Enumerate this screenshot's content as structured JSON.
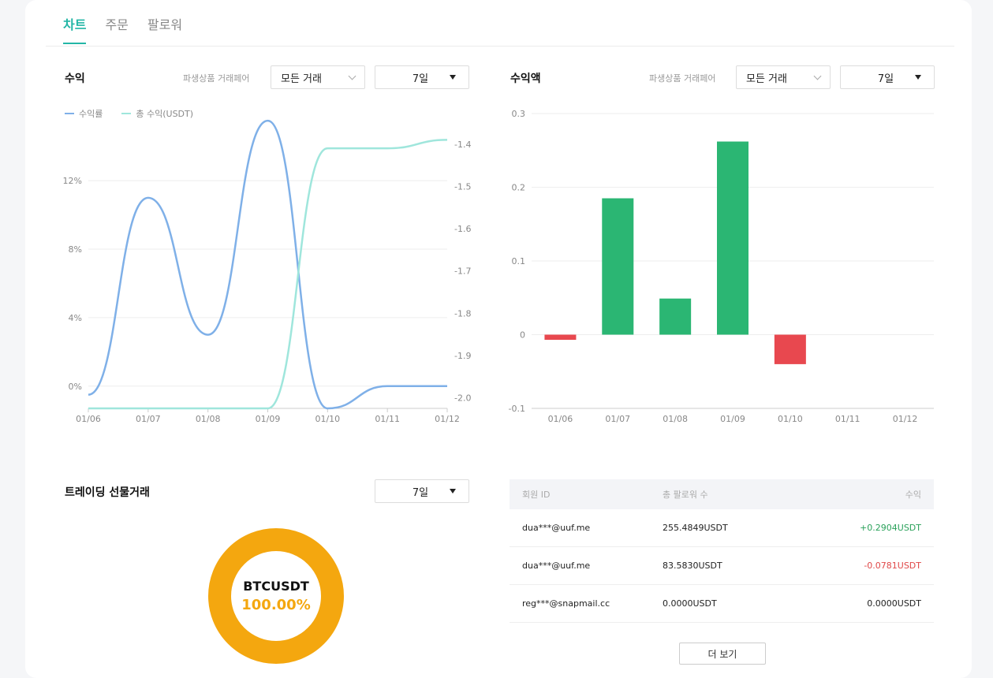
{
  "tabs": [
    {
      "label": "차트"
    },
    {
      "label": "주문"
    },
    {
      "label": "팔로워"
    }
  ],
  "profit_panel": {
    "title": "수익",
    "pair_label": "파생상품 거래페어",
    "pair_select": "모든 거래",
    "period_select": "7일",
    "legend": [
      {
        "label": "수익률",
        "color": "#7fb0e8"
      },
      {
        "label": "총 수익(USDT)",
        "color": "#9fe6dc"
      }
    ]
  },
  "amount_panel": {
    "title": "수익액",
    "pair_label": "파생상품 거래페어",
    "pair_select": "모든 거래",
    "period_select": "7일"
  },
  "trading_panel": {
    "title": "트레이딩 선물거래",
    "period_select": "7일",
    "symbol": "BTCUSDT",
    "share": "100.00%",
    "share_value": 100,
    "color": "#f4a70f"
  },
  "followers_table": {
    "headers": [
      "회원 ID",
      "총 팔로워 수",
      "수익"
    ],
    "rows": [
      {
        "id": "dua***@uuf.me",
        "total": "255.4849USDT",
        "profit": "+0.2904USDT",
        "profit_color": "#2aa15a"
      },
      {
        "id": "dua***@uuf.me",
        "total": "83.5830USDT",
        "profit": "-0.0781USDT",
        "profit_color": "#e04848"
      },
      {
        "id": "reg***@snapmail.cc",
        "total": "0.0000USDT",
        "profit": "0.0000USDT",
        "profit_color": "#222222"
      }
    ],
    "more_button": "더 보기"
  },
  "chart_data": [
    {
      "type": "line",
      "x": [
        "01/06",
        "01/07",
        "01/08",
        "01/09",
        "01/10",
        "01/11",
        "01/12"
      ],
      "y_left_ticks": [
        "0%",
        "4%",
        "8%",
        "12%"
      ],
      "y_left_range": [
        -1.3,
        15
      ],
      "y_right_ticks": [
        "-1.4",
        "-1.5",
        "-1.6",
        "-1.7",
        "-1.8",
        "-1.9",
        "-2.0"
      ],
      "y_right_range": [
        -2.025,
        -1.365
      ],
      "series": [
        {
          "name": "수익률",
          "axis": "left",
          "color": "#7fb0e8",
          "values": [
            -0.5,
            11.0,
            3.0,
            15.5,
            -1.3,
            0.0,
            0.0
          ]
        },
        {
          "name": "총 수익(USDT)",
          "axis": "right",
          "color": "#9fe6dc",
          "values": [
            -2.025,
            -2.025,
            -2.025,
            -2.025,
            -1.41,
            -1.41,
            -1.39
          ]
        }
      ]
    },
    {
      "type": "bar",
      "categories": [
        "01/06",
        "01/07",
        "01/08",
        "01/09",
        "01/10",
        "01/11",
        "01/12"
      ],
      "values": [
        -0.007,
        0.185,
        0.049,
        0.262,
        -0.04,
        0,
        0
      ],
      "ylim": [
        -0.1,
        0.3
      ],
      "yticks": [
        "0.3",
        "0.2",
        "0.1",
        "0",
        "-0.1"
      ],
      "positive_color": "#2bb673",
      "negative_color": "#e8484f"
    }
  ]
}
